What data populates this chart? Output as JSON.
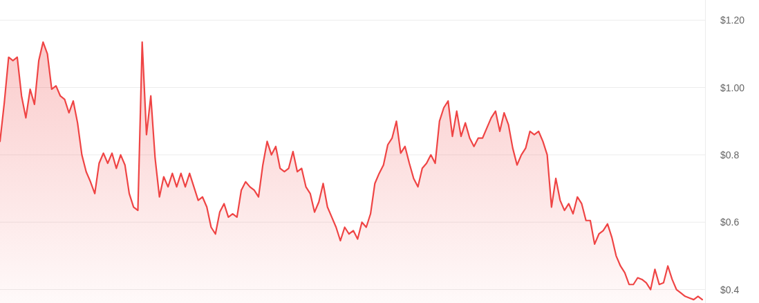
{
  "chart_data": {
    "type": "area",
    "color": "#ef4444",
    "ylim": [
      0.36,
      1.26
    ],
    "yticks": [
      {
        "value": 0.4,
        "label": "$0.4"
      },
      {
        "value": 0.6,
        "label": "$0.6"
      },
      {
        "value": 0.8,
        "label": "$0.8"
      },
      {
        "value": 1.0,
        "label": "$1.00"
      },
      {
        "value": 1.2,
        "label": "$1.20"
      }
    ],
    "grid": "y",
    "tick_labels": "y",
    "categories": [
      null,
      null,
      null,
      null,
      null,
      null,
      null,
      null,
      null,
      null,
      null,
      null,
      null,
      null,
      null,
      null,
      null,
      null,
      null,
      null,
      null,
      null,
      null,
      null,
      null,
      null,
      null,
      null,
      null,
      null,
      null,
      null,
      null,
      null,
      null,
      null,
      null,
      null,
      null,
      null,
      null,
      null,
      null,
      null,
      null,
      null,
      null,
      null,
      null,
      null,
      null,
      null,
      null,
      null,
      null,
      null,
      null,
      null,
      null,
      null,
      null,
      null,
      null,
      null,
      null,
      null,
      null,
      null,
      null,
      null,
      null,
      null,
      null,
      null,
      null,
      null,
      null,
      null,
      null,
      null,
      null,
      null,
      null,
      null,
      null,
      null,
      null,
      null,
      null,
      null,
      null,
      null,
      null,
      null,
      null,
      null,
      null,
      null,
      null,
      null,
      null,
      null,
      null,
      null,
      null,
      null,
      null,
      null,
      null,
      null,
      null,
      null,
      null,
      null,
      null,
      null,
      null,
      null,
      null,
      null,
      null,
      null,
      null,
      null,
      null,
      null,
      null,
      null,
      null,
      null,
      null,
      null,
      null,
      null,
      null,
      null,
      null,
      null,
      null,
      null,
      null,
      null,
      null,
      null,
      null,
      null,
      null,
      null,
      null,
      null,
      null,
      null,
      null,
      null,
      null,
      null,
      null,
      null,
      null,
      null,
      null,
      null,
      null,
      null
    ],
    "values": [
      0.84,
      0.955,
      1.09,
      1.08,
      1.09,
      0.975,
      0.91,
      0.995,
      0.95,
      1.08,
      1.135,
      1.1,
      0.995,
      1.005,
      0.975,
      0.965,
      0.925,
      0.96,
      0.895,
      0.8,
      0.75,
      0.72,
      0.685,
      0.775,
      0.805,
      0.775,
      0.805,
      0.76,
      0.8,
      0.77,
      0.685,
      0.645,
      0.635,
      1.135,
      0.86,
      0.975,
      0.79,
      0.675,
      0.735,
      0.705,
      0.745,
      0.705,
      0.745,
      0.705,
      0.745,
      0.705,
      0.665,
      0.675,
      0.645,
      0.585,
      0.565,
      0.63,
      0.655,
      0.615,
      0.625,
      0.615,
      0.695,
      0.72,
      0.705,
      0.695,
      0.675,
      0.77,
      0.84,
      0.8,
      0.825,
      0.76,
      0.75,
      0.76,
      0.81,
      0.75,
      0.76,
      0.705,
      0.685,
      0.63,
      0.66,
      0.715,
      0.645,
      0.615,
      0.585,
      0.545,
      0.585,
      0.565,
      0.575,
      0.55,
      0.6,
      0.585,
      0.625,
      0.715,
      0.745,
      0.77,
      0.83,
      0.85,
      0.9,
      0.805,
      0.825,
      0.775,
      0.73,
      0.705,
      0.76,
      0.775,
      0.8,
      0.775,
      0.9,
      0.94,
      0.96,
      0.855,
      0.93,
      0.855,
      0.895,
      0.85,
      0.825,
      0.85,
      0.85,
      0.88,
      0.91,
      0.93,
      0.87,
      0.925,
      0.89,
      0.82,
      0.77,
      0.8,
      0.82,
      0.87,
      0.86,
      0.87,
      0.84,
      0.8,
      0.645,
      0.73,
      0.665,
      0.635,
      0.655,
      0.625,
      0.675,
      0.655,
      0.605,
      0.605,
      0.535,
      0.565,
      0.575,
      0.595,
      0.555,
      0.5,
      0.47,
      0.45,
      0.415,
      0.415,
      0.435,
      0.43,
      0.42,
      0.4,
      0.46,
      0.415,
      0.42,
      0.47,
      0.43,
      0.4,
      0.39,
      0.38,
      0.375,
      0.37,
      0.38,
      0.37
    ]
  }
}
